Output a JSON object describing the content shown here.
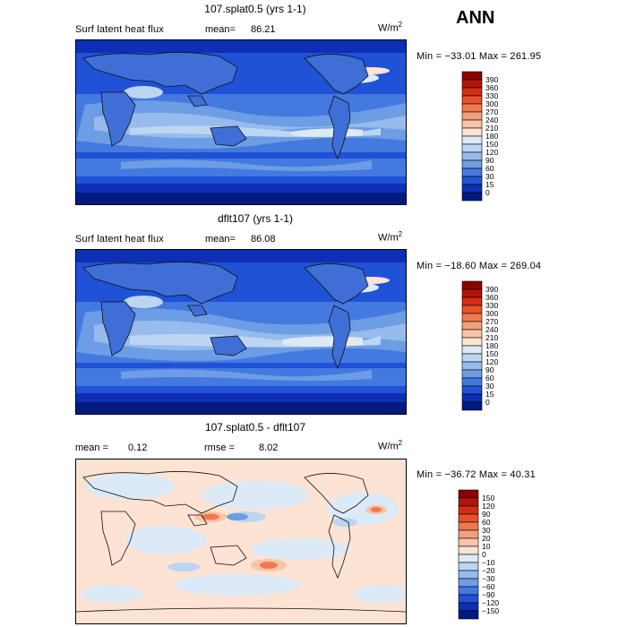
{
  "season": "ANN",
  "panels": [
    {
      "title": "107.splat0.5 (yrs 1-1)",
      "left_label": "Surf latent heat flux",
      "stat_label": "mean=",
      "stat_value": "86.21",
      "unit_base": "W/m",
      "unit_exp": "2",
      "minmax": "Min = −33.01 Max = 261.95"
    },
    {
      "title": "dflt107 (yrs 1-1)",
      "left_label": "Surf latent heat flux",
      "stat_label": "mean=",
      "stat_value": "86.08",
      "unit_base": "W/m",
      "unit_exp": "2",
      "minmax": "Min = −18.60 Max = 269.04"
    },
    {
      "title": "107.splat0.5 - dflt107",
      "left_label": "mean =",
      "left_value": "0.12",
      "stat_label": "rmse =",
      "stat_value": "8.02",
      "unit_base": "W/m",
      "unit_exp": "2",
      "minmax": "Min = −36.72 Max =  40.31"
    }
  ],
  "colorbars": {
    "field": {
      "levels": [
        "390",
        "360",
        "330",
        "300",
        "270",
        "240",
        "210",
        "180",
        "150",
        "120",
        "90",
        "60",
        "30",
        "15",
        "0"
      ],
      "colors": [
        "#8b0000",
        "#b3140a",
        "#d42e12",
        "#e8502a",
        "#f07a4f",
        "#f5a07c",
        "#f9c4a6",
        "#fce3d3",
        "#dce9f7",
        "#bcd5f2",
        "#96bbec",
        "#6d9de4",
        "#4479e0",
        "#1f52d6",
        "#0c2fb5",
        "#001a80"
      ]
    },
    "diff": {
      "levels": [
        "150",
        "120",
        "90",
        "60",
        "30",
        "20",
        "10",
        "0",
        "−10",
        "−20",
        "−30",
        "−60",
        "−90",
        "−120",
        "−150"
      ],
      "colors": [
        "#8b0000",
        "#b3140a",
        "#d42e12",
        "#e8502a",
        "#f07a4f",
        "#f5a07c",
        "#f9c4a6",
        "#fce3d3",
        "#dce9f7",
        "#bcd5f2",
        "#96bbec",
        "#6d9de4",
        "#4479e0",
        "#1f52d6",
        "#0c2fb5",
        "#001a80"
      ]
    }
  },
  "chart_data": [
    {
      "type": "heatmap",
      "title": "107.splat0.5 (yrs 1-1)",
      "variable": "Surf latent heat flux",
      "units": "W/m2",
      "mean": 86.21,
      "min": -33.01,
      "max": 261.95,
      "contour_levels": [
        0,
        15,
        30,
        60,
        90,
        120,
        150,
        180,
        210,
        240,
        270,
        300,
        330,
        360,
        390
      ]
    },
    {
      "type": "heatmap",
      "title": "dflt107 (yrs 1-1)",
      "variable": "Surf latent heat flux",
      "units": "W/m2",
      "mean": 86.08,
      "min": -18.6,
      "max": 269.04,
      "contour_levels": [
        0,
        15,
        30,
        60,
        90,
        120,
        150,
        180,
        210,
        240,
        270,
        300,
        330,
        360,
        390
      ]
    },
    {
      "type": "heatmap",
      "title": "107.splat0.5 - dflt107",
      "units": "W/m2",
      "mean": 0.12,
      "rmse": 8.02,
      "min": -36.72,
      "max": 40.31,
      "contour_levels": [
        -150,
        -120,
        -90,
        -60,
        -30,
        -20,
        -10,
        0,
        10,
        20,
        30,
        60,
        90,
        120,
        150
      ]
    }
  ]
}
